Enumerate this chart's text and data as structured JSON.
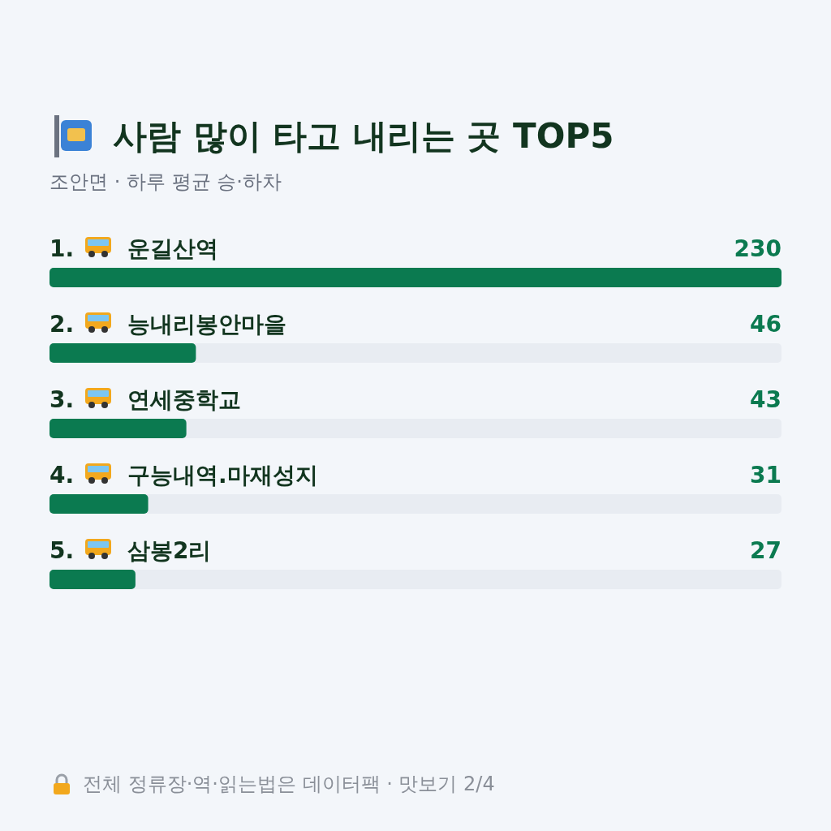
{
  "chart_data": {
    "type": "bar",
    "orientation": "horizontal",
    "title": "사람 많이 타고 내리는 곳 TOP5",
    "subtitle": "조안면 · 하루 평균 승·하차",
    "categories": [
      "1. 운길산역",
      "2. 능내리봉안마을",
      "3. 연세중학교",
      "4. 구능내역.마재성지",
      "5. 삼봉2리"
    ],
    "values": [
      230,
      46,
      43,
      31,
      27
    ],
    "color": "#0b7a50",
    "data_labels": true,
    "annotations": [
      "전체 정류장·역·읽는법은 데이터팩 · 맛보기 2/4"
    ]
  }
}
